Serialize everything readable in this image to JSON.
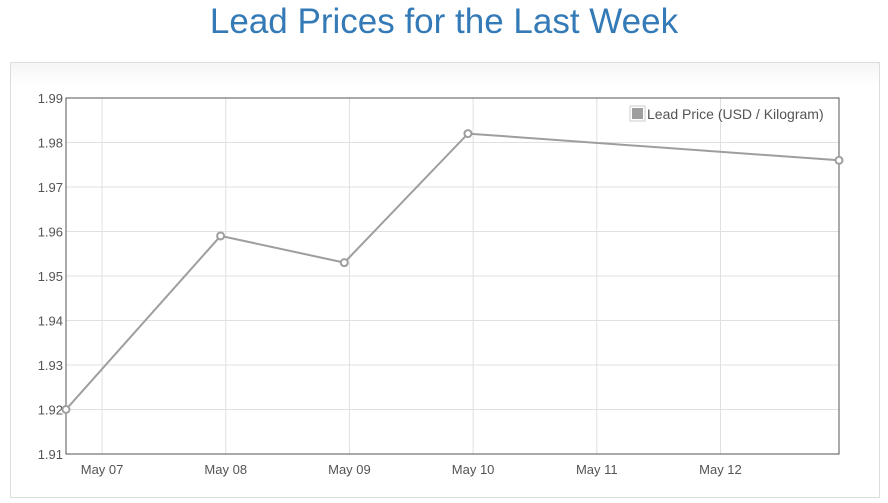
{
  "page": {
    "title": "Lead Prices for the Last Week"
  },
  "chart_data": {
    "type": "line",
    "title": "Lead Prices for the Last Week",
    "xlabel": "",
    "ylabel": "",
    "x_ticks": [
      "May 07",
      "May 08",
      "May 09",
      "May 10",
      "May 11",
      "May 12"
    ],
    "y_ticks": [
      "1.91",
      "1.92",
      "1.93",
      "1.94",
      "1.95",
      "1.96",
      "1.97",
      "1.98",
      "1.99"
    ],
    "ylim": [
      1.91,
      1.99
    ],
    "grid": true,
    "legend_position": "top-right",
    "series": [
      {
        "name": "Lead Price (USD / Kilogram)",
        "color": "#9e9e9e",
        "points": [
          {
            "date": "May 06, 17:00",
            "value": 1.92
          },
          {
            "date": "May 07, 23:00",
            "value": 1.959
          },
          {
            "date": "May 08, 23:00",
            "value": 1.953
          },
          {
            "date": "May 09, 23:00",
            "value": 1.982
          },
          {
            "date": "May 12, 23:00",
            "value": 1.976
          }
        ]
      }
    ]
  }
}
